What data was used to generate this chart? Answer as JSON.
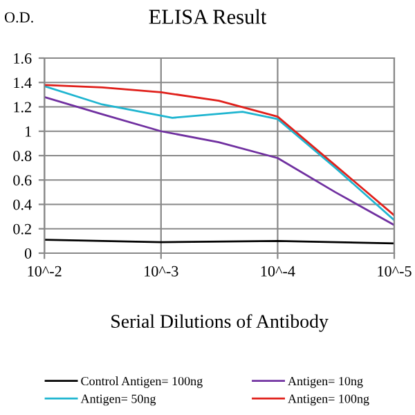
{
  "chart_data": {
    "type": "line",
    "title": "ELISA Result",
    "ylabel": "O.D.",
    "xlabel": "Serial Dilutions of Antibody",
    "log": "x",
    "xlim": [
      0.01,
      1e-05
    ],
    "xticks": [
      {
        "value": 0.01,
        "label": "10^-2"
      },
      {
        "value": 0.001,
        "label": "10^-3"
      },
      {
        "value": 0.0001,
        "label": "10^-4"
      },
      {
        "value": 1e-05,
        "label": "10^-5"
      }
    ],
    "ylim": [
      0,
      1.6
    ],
    "yticks": [
      0,
      0.2,
      0.4,
      0.6,
      0.8,
      1,
      1.2,
      1.4,
      1.6
    ],
    "grid": true,
    "legend": "bottom",
    "marker": "none",
    "line_style": "solid",
    "series": [
      {
        "name": "Control Antigen= 100ng",
        "color": "#000000",
        "x": [
          0.01,
          0.001,
          0.0001,
          1e-05
        ],
        "values": [
          0.11,
          0.09,
          0.1,
          0.08
        ]
      },
      {
        "name": "Antigen= 10ng",
        "color": "#7030a0",
        "x": [
          0.01,
          0.0032,
          0.001,
          0.00032,
          0.0001,
          3.2e-05,
          1e-05
        ],
        "values": [
          1.28,
          1.14,
          1.0,
          0.91,
          0.78,
          0.5,
          0.23
        ]
      },
      {
        "name": "Antigen= 50ng",
        "color": "#1fb5d0",
        "x": [
          0.01,
          0.0032,
          0.0008,
          0.0002,
          0.0001,
          3.2e-05,
          1e-05
        ],
        "values": [
          1.37,
          1.22,
          1.11,
          1.16,
          1.1,
          0.7,
          0.27
        ]
      },
      {
        "name": "Antigen= 100ng",
        "color": "#e0201b",
        "x": [
          0.01,
          0.0032,
          0.001,
          0.00032,
          0.0001,
          3.2e-05,
          1e-05
        ],
        "values": [
          1.38,
          1.36,
          1.32,
          1.25,
          1.12,
          0.72,
          0.31
        ]
      }
    ]
  }
}
